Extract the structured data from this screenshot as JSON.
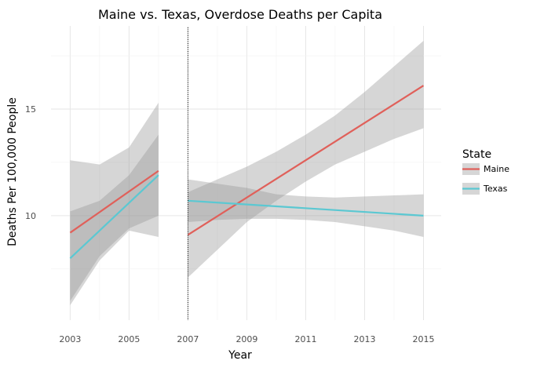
{
  "chart_data": {
    "type": "line",
    "title": "Maine vs. Texas, Overdose Deaths per Capita",
    "xlabel": "Year",
    "ylabel": "Deaths Per 100,000 People",
    "x_ticks": [
      2003,
      2005,
      2007,
      2009,
      2011,
      2013,
      2015
    ],
    "y_ticks": [
      10,
      15
    ],
    "xlim": [
      2002.35,
      2015.6
    ],
    "ylim": [
      5.1,
      18.9
    ],
    "grid": true,
    "legend_position": "right",
    "legend_title": "State",
    "vertical_line": {
      "x": 2007,
      "style": "dotted"
    },
    "ribbon_color": "#999999",
    "series": [
      {
        "name": "Maine",
        "color": "#e0605a",
        "segments": [
          {
            "x": [
              2003,
              2006
            ],
            "y": [
              9.2,
              12.1
            ],
            "ci_x": [
              2003,
              2004,
              2005,
              2006
            ],
            "ci_lower": [
              6.0,
              8.1,
              9.4,
              10.0
            ],
            "ci_upper": [
              12.6,
              12.4,
              13.2,
              15.3
            ]
          },
          {
            "x": [
              2007,
              2015
            ],
            "y": [
              9.1,
              16.1
            ],
            "ci_x": [
              2007,
              2008,
              2009,
              2010,
              2011,
              2012,
              2013,
              2014,
              2015
            ],
            "ci_lower": [
              7.1,
              8.4,
              9.7,
              10.7,
              11.6,
              12.4,
              13.0,
              13.6,
              14.1
            ],
            "ci_upper": [
              11.1,
              11.7,
              12.3,
              13.0,
              13.8,
              14.7,
              15.8,
              17.0,
              18.2
            ]
          }
        ]
      },
      {
        "name": "Texas",
        "color": "#5bc8d2",
        "segments": [
          {
            "x": [
              2003,
              2006
            ],
            "y": [
              8.0,
              11.9
            ],
            "ci_x": [
              2003,
              2004,
              2005,
              2006
            ],
            "ci_lower": [
              5.8,
              7.9,
              9.3,
              9.0
            ],
            "ci_upper": [
              10.2,
              10.7,
              11.9,
              13.8
            ]
          },
          {
            "x": [
              2007,
              2015
            ],
            "y": [
              10.7,
              10.0
            ],
            "ci_x": [
              2007,
              2008,
              2009,
              2010,
              2011,
              2012,
              2013,
              2014,
              2015
            ],
            "ci_lower": [
              9.7,
              9.8,
              9.85,
              9.85,
              9.8,
              9.7,
              9.5,
              9.3,
              9.0
            ],
            "ci_upper": [
              11.7,
              11.5,
              11.3,
              11.0,
              10.9,
              10.85,
              10.9,
              10.95,
              11.0
            ]
          }
        ]
      }
    ]
  }
}
